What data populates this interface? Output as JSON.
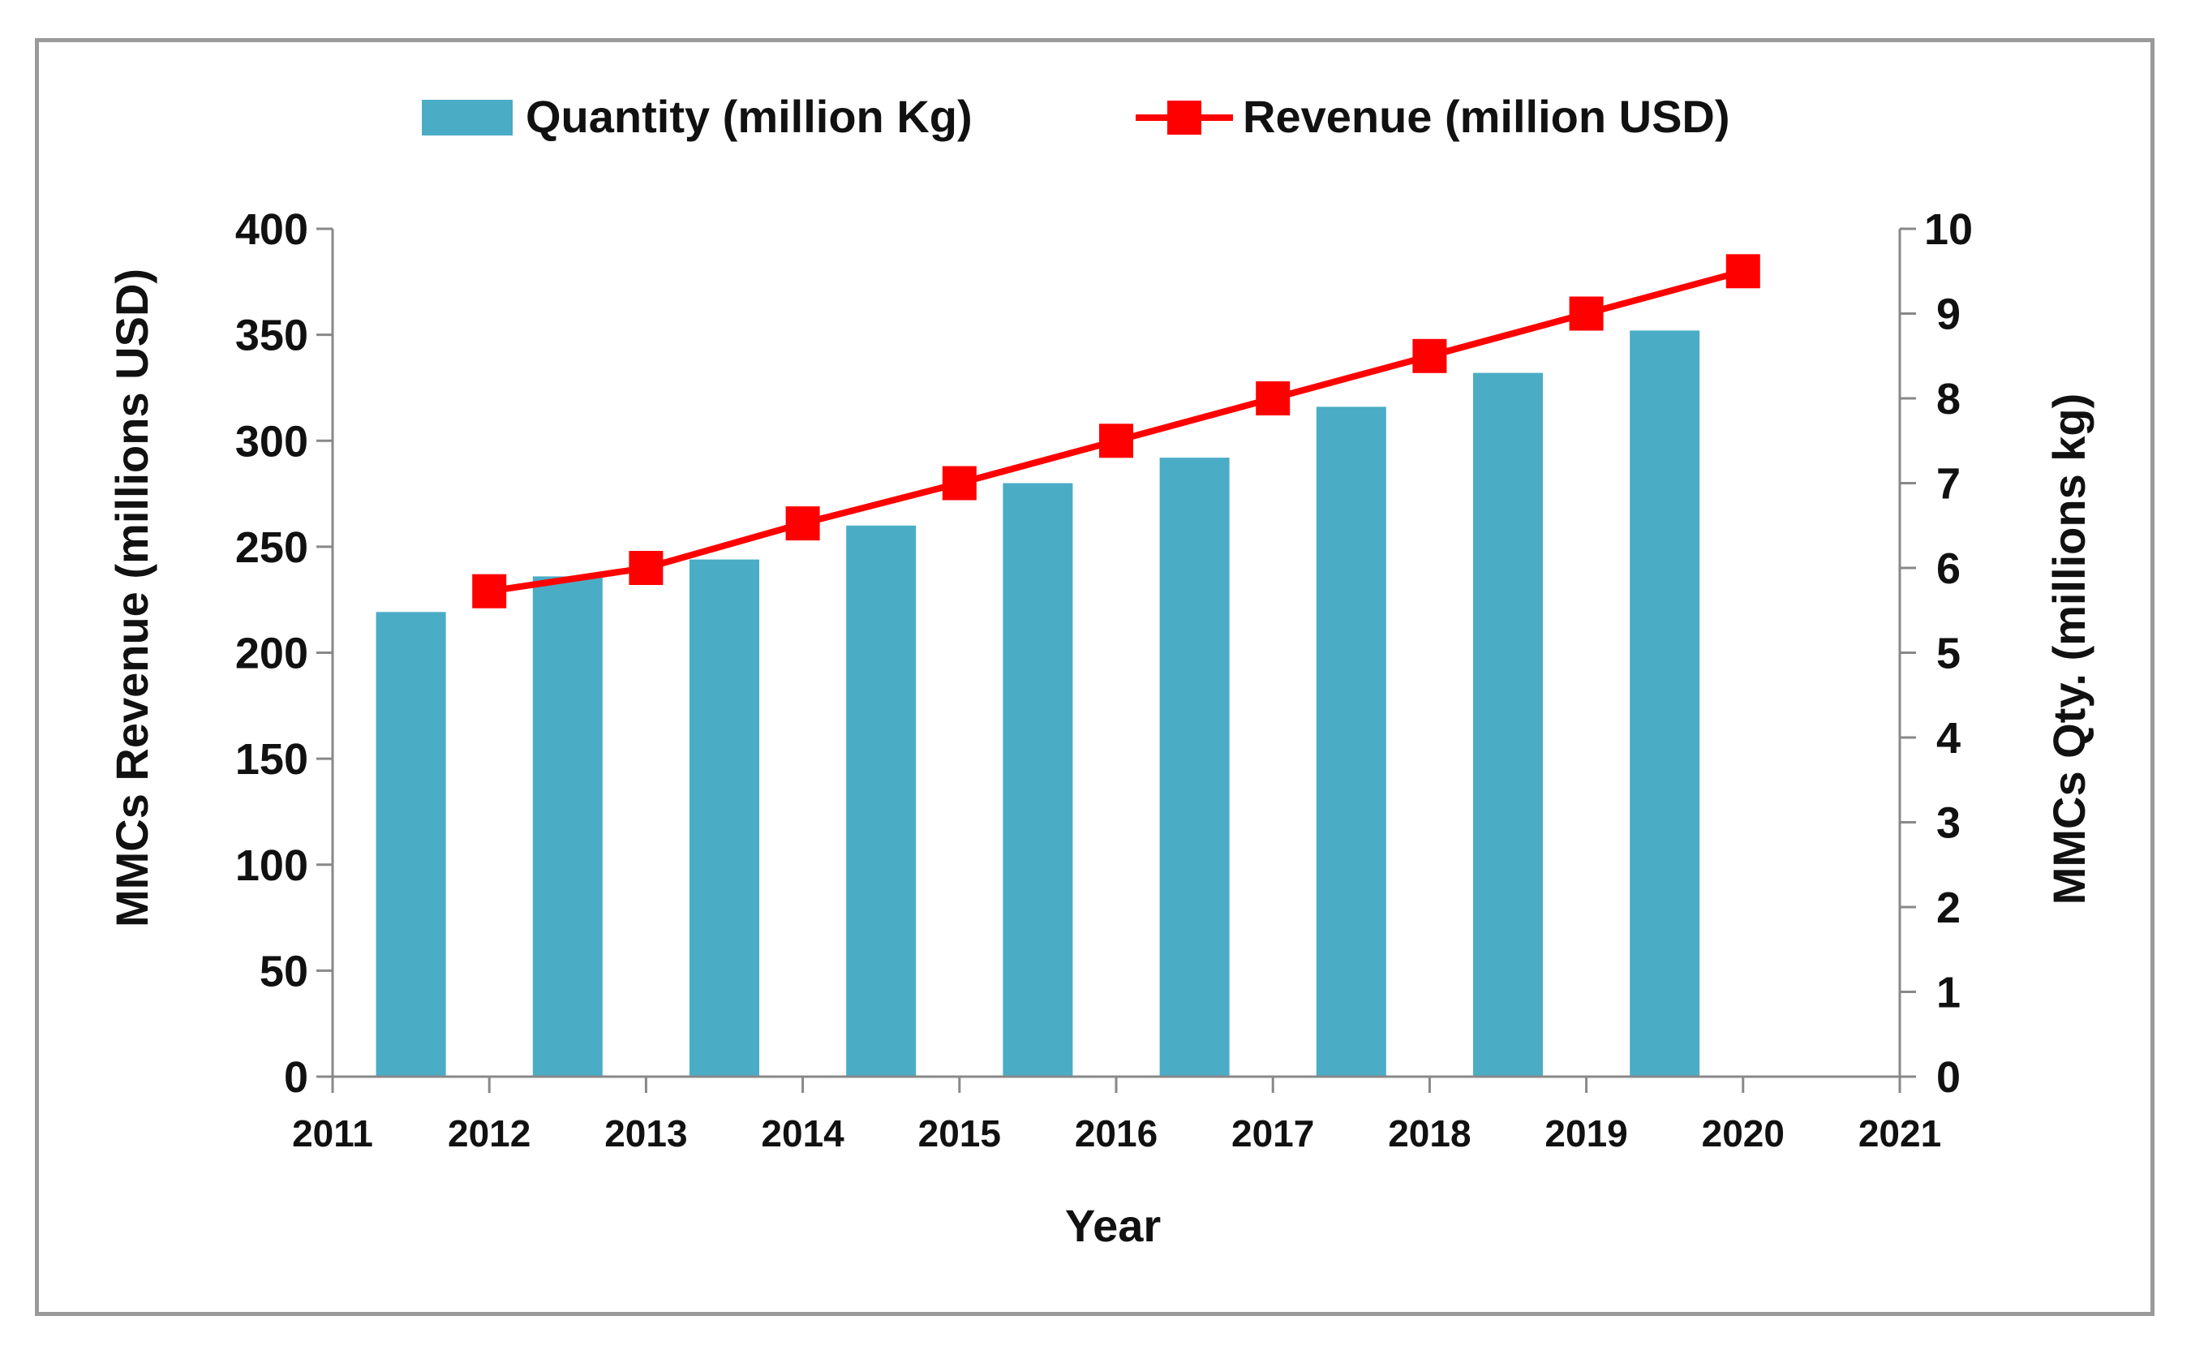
{
  "chart_data": {
    "type": "bar",
    "title": "",
    "xlabel": "Year",
    "ylabel_left": "MMCs Revenue (millions USD)",
    "ylabel_right": "MMCs Qty. (millions kg)",
    "xlim": [
      2011,
      2021
    ],
    "x_ticks": [
      "2011",
      "2012",
      "2013",
      "2014",
      "2015",
      "2016",
      "2017",
      "2018",
      "2019",
      "2020",
      "2021"
    ],
    "ylim_left": [
      0,
      400
    ],
    "y_ticks_left": [
      "0",
      "50",
      "100",
      "150",
      "200",
      "250",
      "300",
      "350",
      "400"
    ],
    "ylim_right": [
      0,
      10
    ],
    "y_ticks_right": [
      "0",
      "1",
      "2",
      "3",
      "4",
      "5",
      "6",
      "7",
      "8",
      "9",
      "10"
    ],
    "grid": false,
    "legend_position": "top-center",
    "series": [
      {
        "name": "Quantity (million Kg)",
        "type": "bar",
        "axis": "right",
        "color": "#4BACC6",
        "x": [
          2011.5,
          2012.5,
          2013.5,
          2014.5,
          2015.5,
          2016.5,
          2017.5,
          2018.5,
          2019.5
        ],
        "values": [
          5.48,
          5.9,
          6.1,
          6.5,
          7.0,
          7.3,
          7.9,
          8.3,
          8.8
        ]
      },
      {
        "name": "Revenue (million USD)",
        "type": "line",
        "marker": "square",
        "axis": "left",
        "color": "#FF0000",
        "x": [
          2012,
          2013,
          2014,
          2015,
          2016,
          2017,
          2018,
          2019,
          2020
        ],
        "values": [
          229,
          240,
          261,
          280,
          300,
          320,
          340,
          360,
          380
        ]
      }
    ]
  }
}
